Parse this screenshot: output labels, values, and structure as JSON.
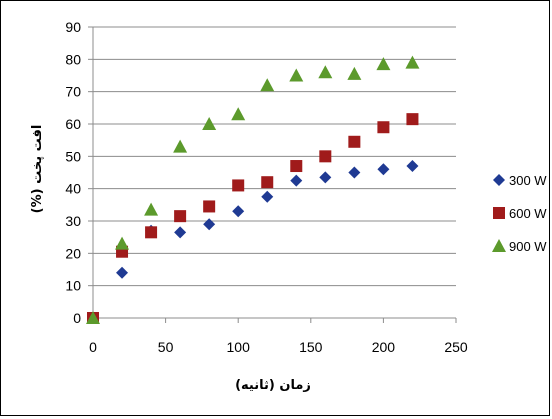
{
  "chart_data": {
    "type": "scatter",
    "xlabel": "زمان (ثانیه)",
    "ylabel": "افت پخت (%)",
    "xlim": [
      0,
      250
    ],
    "ylim": [
      0,
      90
    ],
    "xticks": [
      0,
      50,
      100,
      150,
      200,
      250
    ],
    "yticks": [
      0,
      10,
      20,
      30,
      40,
      50,
      60,
      70,
      80,
      90
    ],
    "grid": "horizontal",
    "legend": "right",
    "series": [
      {
        "name": "300 W",
        "marker": "diamond",
        "color": "#1f3a93",
        "x": [
          0,
          20,
          40,
          60,
          80,
          100,
          120,
          140,
          160,
          180,
          200,
          220
        ],
        "y": [
          0,
          14,
          27,
          26.5,
          29,
          33,
          37.5,
          42.5,
          43.5,
          45,
          46,
          47
        ]
      },
      {
        "name": "600 W",
        "marker": "square",
        "color": "#a01b1b",
        "x": [
          0,
          20,
          40,
          60,
          80,
          100,
          120,
          140,
          160,
          180,
          200,
          220
        ],
        "y": [
          0,
          20.5,
          26.5,
          31.5,
          34.5,
          41,
          42,
          47,
          50,
          54.5,
          59,
          61.5
        ]
      },
      {
        "name": "900 W",
        "marker": "triangle",
        "color": "#5c9a2c",
        "x": [
          0,
          20,
          40,
          60,
          80,
          100,
          120,
          140,
          160,
          180,
          200,
          220
        ],
        "y": [
          0,
          23,
          33.5,
          53,
          60,
          63,
          72,
          75,
          76,
          75.5,
          78.5,
          79
        ]
      }
    ]
  }
}
